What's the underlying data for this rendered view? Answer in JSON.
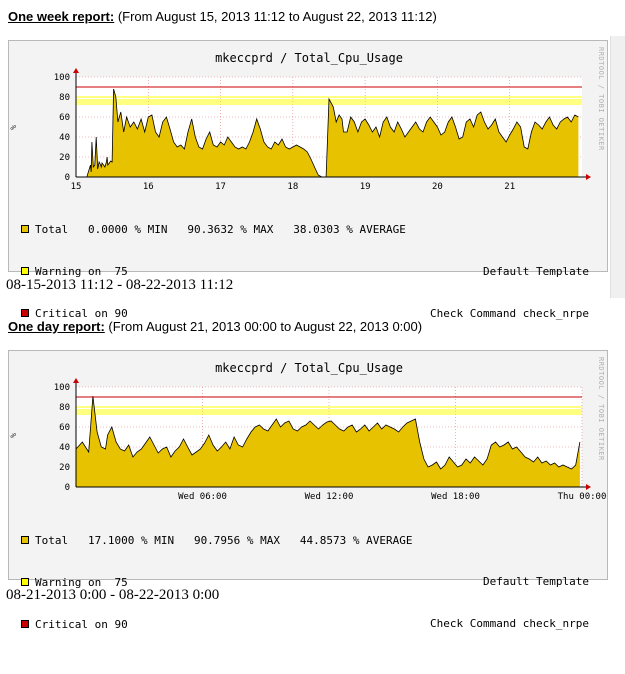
{
  "scrollbar_visible": true,
  "week_report": {
    "header_label": "One week report:",
    "header_range": "(From August 15, 2013 11:12 to August 22, 2013 11:12)",
    "chart_title": "mkeccprd / Total_Cpu_Usage",
    "ylabel": "%",
    "watermark": "RRDTOOL / TOBI OETIKER",
    "legend": [
      {
        "text": "Total   0.0000 % MIN   90.3632 % MAX   38.0303 % AVERAGE",
        "color": "#e6c200"
      },
      {
        "text": "Warning on  75",
        "color": "#ffff00"
      },
      {
        "text": "Critical on 90",
        "color": "#cc0000"
      }
    ],
    "template_line1": "Default Template",
    "template_line2": "Check Command check_nrpe",
    "range_text": "08-15-2013 11:12 - 08-22-2013 11:12"
  },
  "day_report": {
    "header_label": "One day report:",
    "header_range": "(From August 21, 2013 00:00 to August 22, 2013 0:00)",
    "chart_title": "mkeccprd / Total_Cpu_Usage",
    "ylabel": "%",
    "watermark": "RRDTOOL / TOBI OETIKER",
    "legend": [
      {
        "text": "Total   17.1000 % MIN   90.7956 % MAX   44.8573 % AVERAGE",
        "color": "#e6c200"
      },
      {
        "text": "Warning on  75",
        "color": "#ffff00"
      },
      {
        "text": "Critical on 90",
        "color": "#cc0000"
      }
    ],
    "template_line1": "Default Template",
    "template_line2": "Check Command check_nrpe",
    "range_text": "08-21-2013 0:00 - 08-22-2013 0:00"
  },
  "chart_data": [
    {
      "type": "area",
      "title": "mkeccprd / Total_Cpu_Usage",
      "ylabel": "%",
      "ylim": [
        0,
        100
      ],
      "yticks": [
        0,
        20,
        40,
        60,
        80,
        100
      ],
      "xticks": [
        "15",
        "16",
        "17",
        "18",
        "19",
        "20",
        "21"
      ],
      "xlim": [
        15,
        22
      ],
      "warning": 75,
      "critical": 90,
      "series": [
        {
          "name": "Total",
          "color": "#e6c200",
          "x": [
            15.0,
            15.15,
            15.2,
            15.21,
            15.22,
            15.24,
            15.26,
            15.28,
            15.3,
            15.32,
            15.34,
            15.35,
            15.36,
            15.38,
            15.4,
            15.42,
            15.43,
            15.44,
            15.46,
            15.48,
            15.5,
            15.52,
            15.55,
            15.58,
            15.62,
            15.66,
            15.7,
            15.75,
            15.8,
            15.85,
            15.9,
            15.95,
            16.0,
            16.05,
            16.1,
            16.15,
            16.2,
            16.25,
            16.3,
            16.35,
            16.4,
            16.45,
            16.5,
            16.55,
            16.6,
            16.65,
            16.7,
            16.75,
            16.8,
            16.85,
            16.9,
            16.95,
            17.0,
            17.05,
            17.1,
            17.15,
            17.2,
            17.25,
            17.3,
            17.35,
            17.4,
            17.45,
            17.5,
            17.55,
            17.6,
            17.65,
            17.7,
            17.75,
            17.8,
            17.85,
            17.9,
            17.95,
            18.0,
            18.05,
            18.1,
            18.15,
            18.2,
            18.25,
            18.3,
            18.35,
            18.4,
            18.42,
            18.46,
            18.5,
            18.56,
            18.6,
            18.64,
            18.68,
            18.7,
            18.75,
            18.8,
            18.85,
            18.9,
            18.95,
            19.0,
            19.05,
            19.1,
            19.15,
            19.2,
            19.25,
            19.3,
            19.35,
            19.4,
            19.45,
            19.5,
            19.55,
            19.6,
            19.65,
            19.7,
            19.75,
            19.8,
            19.85,
            19.9,
            19.95,
            20.0,
            20.05,
            20.1,
            20.15,
            20.2,
            20.25,
            20.3,
            20.35,
            20.4,
            20.45,
            20.5,
            20.55,
            20.6,
            20.65,
            20.7,
            20.75,
            20.8,
            20.85,
            20.9,
            20.95,
            21.0,
            21.05,
            21.1,
            21.15,
            21.2,
            21.25,
            21.3,
            21.35,
            21.4,
            21.45,
            21.5,
            21.55,
            21.6,
            21.65,
            21.7,
            21.75,
            21.8,
            21.85,
            21.9,
            21.95
          ],
          "values": [
            0,
            0,
            12,
            5,
            35,
            10,
            12,
            40,
            8,
            15,
            12,
            10,
            14,
            12,
            10,
            15,
            20,
            12,
            14,
            16,
            15,
            88,
            80,
            55,
            65,
            45,
            60,
            50,
            55,
            48,
            58,
            45,
            60,
            62,
            45,
            40,
            55,
            60,
            48,
            35,
            30,
            32,
            28,
            45,
            58,
            40,
            30,
            28,
            38,
            45,
            32,
            30,
            35,
            32,
            40,
            35,
            30,
            28,
            30,
            28,
            35,
            45,
            58,
            48,
            35,
            30,
            28,
            35,
            32,
            38,
            30,
            28,
            30,
            32,
            30,
            28,
            25,
            18,
            10,
            2,
            0,
            0,
            0,
            78,
            70,
            55,
            62,
            58,
            45,
            45,
            60,
            55,
            45,
            55,
            58,
            52,
            45,
            50,
            40,
            55,
            60,
            50,
            45,
            55,
            48,
            40,
            45,
            50,
            55,
            48,
            45,
            55,
            60,
            55,
            50,
            42,
            45,
            55,
            60,
            50,
            38,
            40,
            55,
            58,
            50,
            62,
            65,
            55,
            48,
            52,
            58,
            45,
            40,
            35,
            42,
            48,
            55,
            50,
            30,
            28,
            45,
            55,
            52,
            48,
            55,
            60,
            52,
            48,
            55,
            58,
            60,
            55,
            62,
            60
          ]
        }
      ]
    },
    {
      "type": "area",
      "title": "mkeccprd / Total_Cpu_Usage",
      "ylabel": "%",
      "ylim": [
        0,
        100
      ],
      "yticks": [
        0,
        20,
        40,
        60,
        80,
        100
      ],
      "xticks": [
        "Wed 06:00",
        "Wed 12:00",
        "Wed 18:00",
        "Thu 00:00"
      ],
      "xlim": [
        0,
        24
      ],
      "warning": 75,
      "critical": 90,
      "series": [
        {
          "name": "Total",
          "color": "#e6c200",
          "x": [
            0.0,
            0.3,
            0.6,
            0.8,
            1.0,
            1.2,
            1.4,
            1.5,
            1.7,
            1.9,
            2.1,
            2.3,
            2.5,
            2.7,
            2.9,
            3.1,
            3.3,
            3.5,
            3.7,
            3.9,
            4.1,
            4.3,
            4.5,
            4.7,
            4.9,
            5.1,
            5.3,
            5.5,
            5.7,
            5.9,
            6.1,
            6.3,
            6.5,
            6.7,
            6.9,
            7.1,
            7.3,
            7.5,
            7.7,
            7.9,
            8.1,
            8.3,
            8.5,
            8.7,
            8.9,
            9.1,
            9.3,
            9.5,
            9.7,
            9.9,
            10.1,
            10.3,
            10.5,
            10.7,
            10.9,
            11.1,
            11.3,
            11.5,
            11.7,
            11.9,
            12.1,
            12.3,
            12.5,
            12.7,
            12.9,
            13.1,
            13.3,
            13.5,
            13.7,
            13.9,
            14.1,
            14.3,
            14.5,
            14.7,
            14.9,
            15.1,
            15.3,
            15.5,
            15.7,
            15.9,
            16.1,
            16.3,
            16.5,
            16.7,
            16.9,
            17.1,
            17.3,
            17.5,
            17.7,
            17.9,
            18.1,
            18.3,
            18.5,
            18.7,
            18.9,
            19.1,
            19.3,
            19.5,
            19.7,
            19.9,
            20.1,
            20.3,
            20.5,
            20.7,
            20.9,
            21.1,
            21.3,
            21.5,
            21.7,
            21.9,
            22.1,
            22.3,
            22.5,
            22.7,
            22.9,
            23.1,
            23.3,
            23.5,
            23.7,
            23.9
          ],
          "values": [
            38,
            45,
            35,
            91,
            55,
            40,
            38,
            52,
            60,
            45,
            38,
            36,
            42,
            30,
            35,
            38,
            44,
            50,
            42,
            34,
            38,
            40,
            30,
            36,
            40,
            48,
            40,
            32,
            35,
            38,
            44,
            52,
            42,
            36,
            40,
            45,
            38,
            50,
            42,
            40,
            48,
            55,
            60,
            62,
            58,
            56,
            62,
            68,
            60,
            64,
            66,
            58,
            56,
            60,
            62,
            66,
            62,
            58,
            62,
            65,
            66,
            62,
            58,
            56,
            60,
            62,
            55,
            58,
            62,
            56,
            60,
            64,
            58,
            62,
            60,
            58,
            55,
            60,
            64,
            66,
            68,
            45,
            28,
            20,
            22,
            25,
            18,
            22,
            30,
            25,
            20,
            22,
            28,
            24,
            30,
            26,
            22,
            28,
            42,
            45,
            40,
            42,
            45,
            38,
            40,
            35,
            30,
            28,
            25,
            30,
            24,
            26,
            22,
            24,
            20,
            22,
            20,
            18,
            22,
            45
          ]
        }
      ]
    }
  ]
}
